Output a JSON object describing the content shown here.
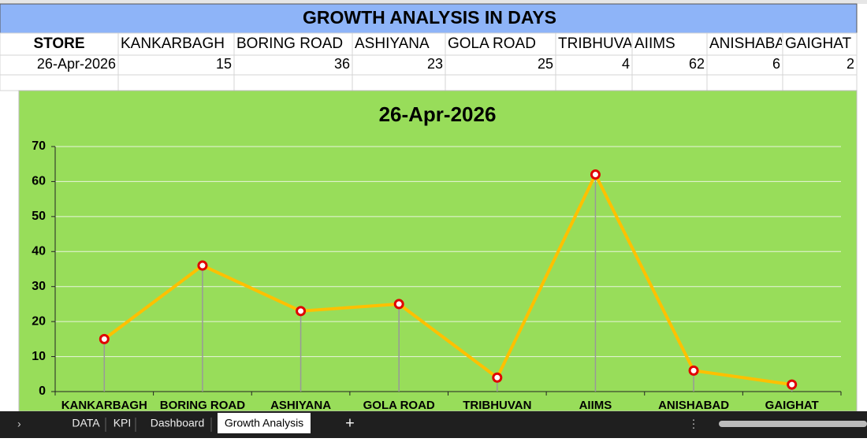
{
  "sheet": {
    "title": "GROWTH ANALYSIS IN DAYS",
    "row_header": "STORE"
  },
  "tabs": [
    "DATA",
    "KPI",
    "Dashboard",
    "Growth Analysis"
  ],
  "chart_data": {
    "type": "line",
    "title": "26-Apr-2026",
    "categories": [
      "KANKARBAGH",
      "BORING ROAD",
      "ASHIYANA",
      "GOLA ROAD",
      "TRIBHUVAN",
      "AIIMS",
      "ANISHABAD",
      "GAIGHAT"
    ],
    "values": [
      15,
      36,
      23,
      25,
      4,
      62,
      6,
      2
    ],
    "color": "#ffc000",
    "marker_color": "#e00000",
    "ylim": [
      0,
      70
    ],
    "yticks": [
      0,
      10,
      20,
      30,
      40,
      50,
      60,
      70
    ],
    "grid": true
  }
}
